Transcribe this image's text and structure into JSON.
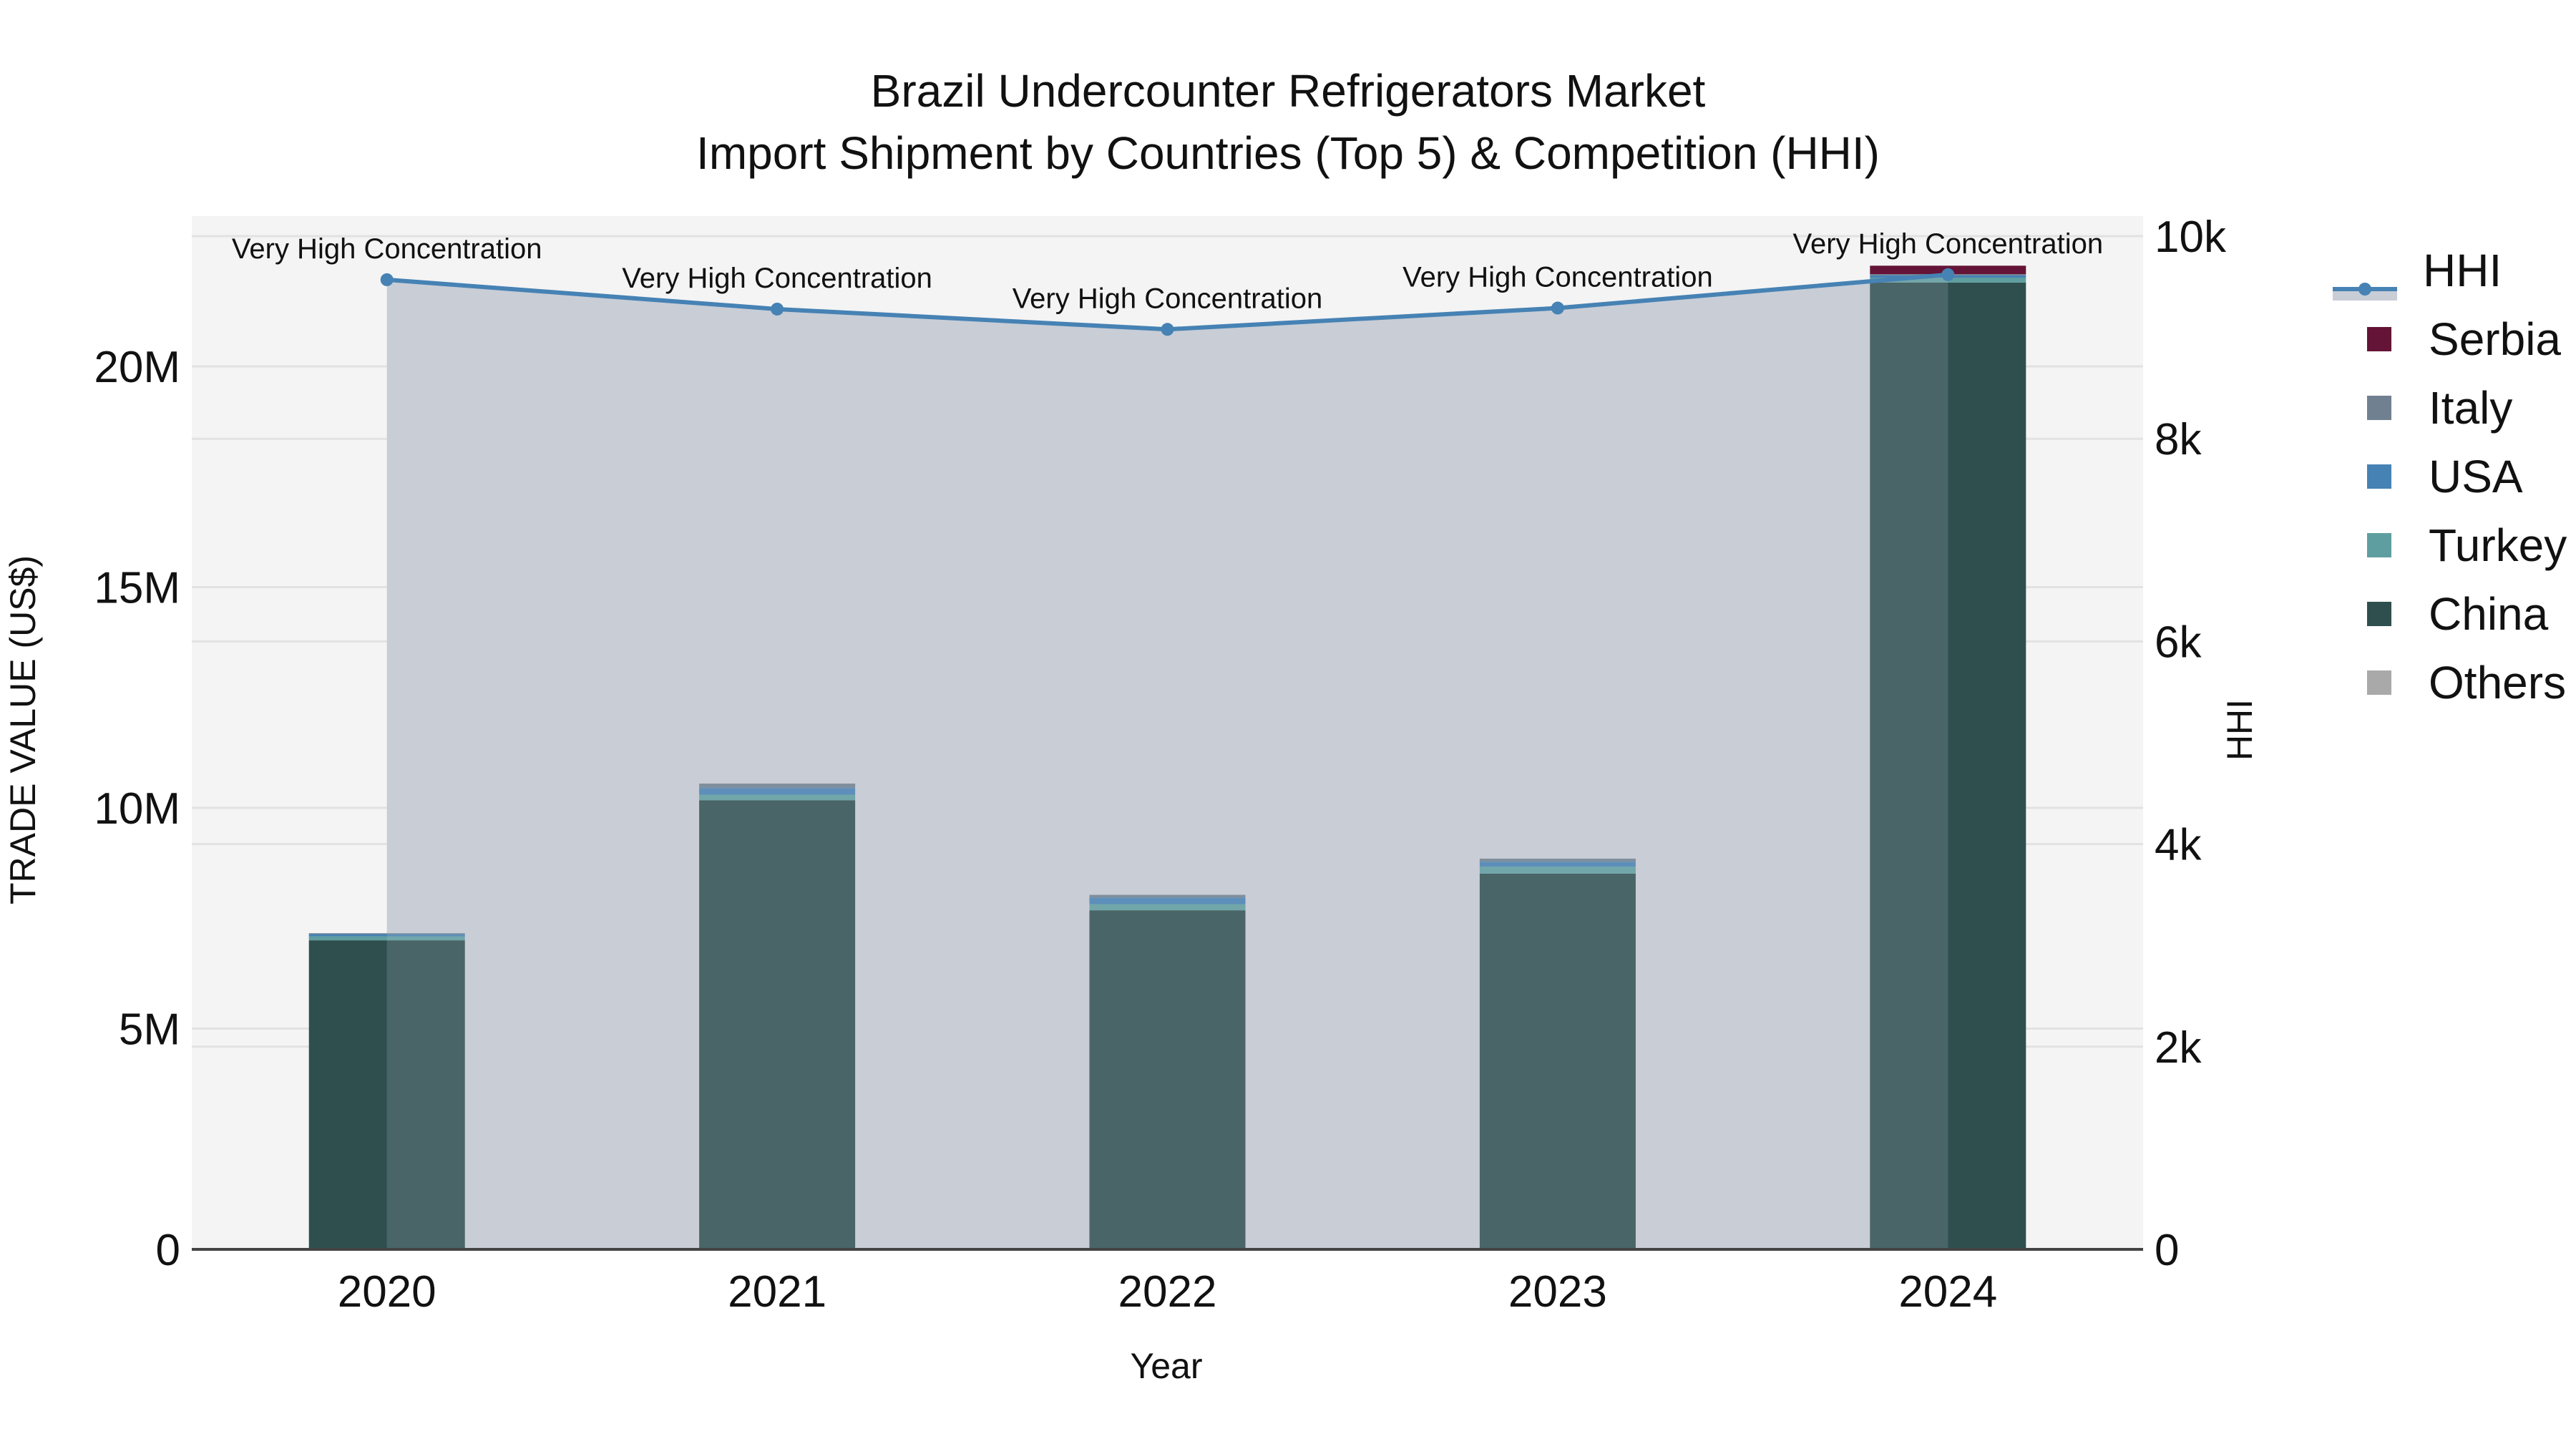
{
  "title": {
    "line1": "Brazil Undercounter Refrigerators Market",
    "line2": "Import Shipment by Countries (Top 5) & Competition (HHI)"
  },
  "axes": {
    "x_title": "Year",
    "y_left_title": "TRADE VALUE (US$)",
    "y_right_title": "HHI",
    "y_left_ticks": [
      "0",
      "5M",
      "10M",
      "15M",
      "20M"
    ],
    "y_right_ticks": [
      "0",
      "2k",
      "4k",
      "6k",
      "8k",
      "10k"
    ]
  },
  "legend": {
    "items": [
      {
        "label": "HHI",
        "type": "line",
        "color": "#4682b4"
      },
      {
        "label": "Serbia",
        "type": "bar",
        "color": "#641436"
      },
      {
        "label": "Italy",
        "type": "bar",
        "color": "#708090"
      },
      {
        "label": "USA",
        "type": "bar",
        "color": "#4682b4"
      },
      {
        "label": "Turkey",
        "type": "bar",
        "color": "#5f9ea0"
      },
      {
        "label": "China",
        "type": "bar",
        "color": "#2f4f4f"
      },
      {
        "label": "Others",
        "type": "bar",
        "color": "#a9a9a9"
      }
    ]
  },
  "chart_data": {
    "type": "bar",
    "title": "Brazil Undercounter Refrigerators Market Import Shipment by Countries (Top 5) & Competition (HHI)",
    "xlabel": "Year",
    "ylabel": "TRADE VALUE (US$)",
    "y2label": "HHI",
    "ylim": [
      0,
      23200000
    ],
    "y2lim": [
      0,
      10200
    ],
    "stacked": true,
    "grid": true,
    "legend_position": "right",
    "categories": [
      "2020",
      "2021",
      "2022",
      "2023",
      "2024"
    ],
    "series": [
      {
        "name": "Others",
        "color": "#a9a9a9",
        "values": [
          0,
          0,
          0,
          0,
          30000
        ]
      },
      {
        "name": "China",
        "color": "#2f4f4f",
        "values": [
          7000000,
          10170000,
          7680000,
          8510000,
          21870000
        ]
      },
      {
        "name": "Turkey",
        "color": "#5f9ea0",
        "values": [
          90000,
          130000,
          140000,
          160000,
          110000
        ]
      },
      {
        "name": "USA",
        "color": "#4682b4",
        "values": [
          50000,
          150000,
          150000,
          110000,
          50000
        ]
      },
      {
        "name": "Italy",
        "color": "#708090",
        "values": [
          20000,
          100000,
          60000,
          70000,
          30000
        ]
      },
      {
        "name": "Serbia",
        "color": "#641436",
        "values": [
          0,
          0,
          0,
          0,
          190000
        ]
      }
    ],
    "line_series": {
      "name": "HHI",
      "axis": "right",
      "color": "#4682b4",
      "values": [
        9570,
        9280,
        9080,
        9290,
        9620
      ],
      "annotations": [
        "Very High Concentration",
        "Very High Concentration",
        "Very High Concentration",
        "Very High Concentration",
        "Very High Concentration"
      ]
    }
  }
}
